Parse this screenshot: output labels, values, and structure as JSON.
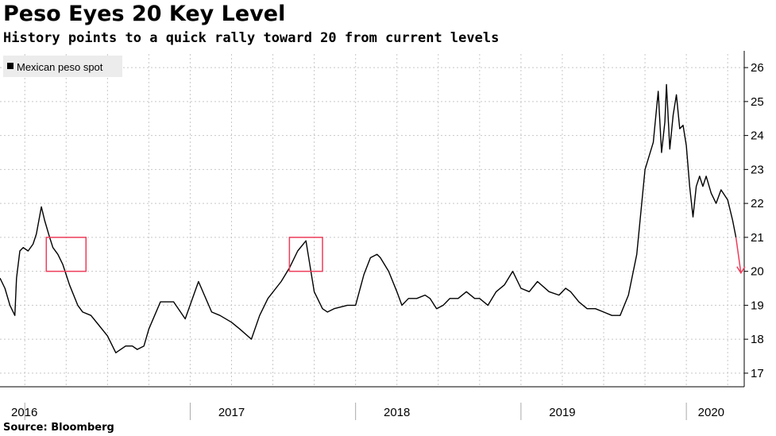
{
  "title": "Peso Eyes 20 Key Level",
  "subtitle": "History points to a quick rally toward 20 from current levels",
  "source": "Source: Bloomberg",
  "colors": {
    "line": "#000000",
    "annotation": "#ee3d5a",
    "grid": "#c8c8c8",
    "legend_bg": "#ececec"
  },
  "chart_data": {
    "type": "line",
    "title": "Peso Eyes 20 Key Level",
    "subtitle": "History points to a quick rally toward 20 from current levels",
    "xlabel": "",
    "ylabel": "",
    "ylim": [
      16.6,
      26.4
    ],
    "xlim": [
      2016.1,
      2020.6
    ],
    "yticks": [
      17,
      18,
      19,
      20,
      21,
      22,
      23,
      24,
      25,
      26
    ],
    "xtick_labels": [
      {
        "label": "2016",
        "x": 2016.1
      },
      {
        "label": "2017",
        "x": 2017.5
      },
      {
        "label": "2018",
        "x": 2018.5
      },
      {
        "label": "2019",
        "x": 2019.5
      },
      {
        "label": "2020",
        "x": 2020.4
      }
    ],
    "year_boundaries": [
      2016.25,
      2017.25,
      2018.25,
      2019.25,
      2020.25
    ],
    "legend": [
      "Mexican peso spot"
    ],
    "legend_position": "top-left",
    "grid": true,
    "series": [
      {
        "name": "Mexican peso spot",
        "x": [
          2016.1,
          2016.13,
          2016.16,
          2016.19,
          2016.2,
          2016.22,
          2016.24,
          2016.27,
          2016.3,
          2016.32,
          2016.35,
          2016.37,
          2016.4,
          2016.42,
          2016.45,
          2016.48,
          2016.52,
          2016.57,
          2016.6,
          2016.65,
          2016.7,
          2016.75,
          2016.8,
          2016.86,
          2016.9,
          2016.93,
          2016.97,
          2017.0,
          2017.07,
          2017.15,
          2017.22,
          2017.3,
          2017.38,
          2017.43,
          2017.5,
          2017.55,
          2017.62,
          2017.67,
          2017.72,
          2017.8,
          2017.85,
          2017.9,
          2017.95,
          2018.0,
          2018.05,
          2018.08,
          2018.12,
          2018.2,
          2018.25,
          2018.3,
          2018.34,
          2018.38,
          2018.4,
          2018.45,
          2018.5,
          2018.53,
          2018.57,
          2018.62,
          2018.67,
          2018.7,
          2018.74,
          2018.78,
          2018.82,
          2018.87,
          2018.92,
          2018.97,
          2019.0,
          2019.05,
          2019.1,
          2019.15,
          2019.2,
          2019.25,
          2019.3,
          2019.35,
          2019.42,
          2019.48,
          2019.52,
          2019.55,
          2019.6,
          2019.65,
          2019.7,
          2019.75,
          2019.8,
          2019.85,
          2019.9,
          2019.95,
          2020.0,
          2020.05,
          2020.08,
          2020.1,
          2020.12,
          2020.13,
          2020.15,
          2020.17,
          2020.19,
          2020.21,
          2020.23,
          2020.25,
          2020.27,
          2020.29,
          2020.31,
          2020.33,
          2020.35,
          2020.37,
          2020.4,
          2020.43,
          2020.46,
          2020.5,
          2020.53,
          2020.55
        ],
        "values": [
          19.8,
          19.5,
          19.0,
          18.7,
          19.8,
          20.6,
          20.7,
          20.6,
          20.8,
          21.1,
          21.9,
          21.5,
          21.0,
          20.7,
          20.5,
          20.2,
          19.6,
          19.0,
          18.8,
          18.7,
          18.4,
          18.1,
          17.6,
          17.8,
          17.8,
          17.7,
          17.8,
          18.3,
          19.1,
          19.1,
          18.6,
          19.7,
          18.8,
          18.7,
          18.5,
          18.3,
          18.0,
          18.7,
          19.2,
          19.7,
          20.1,
          20.6,
          20.9,
          19.4,
          18.9,
          18.8,
          18.9,
          19.0,
          19.0,
          19.9,
          20.4,
          20.5,
          20.4,
          20.0,
          19.4,
          19.0,
          19.2,
          19.2,
          19.3,
          19.2,
          18.9,
          19.0,
          19.2,
          19.2,
          19.4,
          19.2,
          19.2,
          19.0,
          19.4,
          19.6,
          20.0,
          19.5,
          19.4,
          19.7,
          19.4,
          19.3,
          19.5,
          19.4,
          19.1,
          18.9,
          18.9,
          18.8,
          18.7,
          18.7,
          19.3,
          20.5,
          23.0,
          23.8,
          25.3,
          23.5,
          24.4,
          25.5,
          23.6,
          24.6,
          25.2,
          24.2,
          24.3,
          23.7,
          22.5,
          21.6,
          22.5,
          22.8,
          22.5,
          22.8,
          22.3,
          22.0,
          22.4,
          22.1,
          21.5,
          21.0
        ]
      }
    ],
    "annotations": [
      {
        "type": "box",
        "x": [
          2016.38,
          2016.62
        ],
        "y": [
          20.0,
          21.0
        ]
      },
      {
        "type": "box",
        "x": [
          2017.85,
          2018.05
        ],
        "y": [
          20.0,
          21.0
        ]
      },
      {
        "type": "arrow",
        "from": [
          2020.55,
          21.0
        ],
        "to": [
          2020.58,
          19.95
        ]
      }
    ]
  }
}
